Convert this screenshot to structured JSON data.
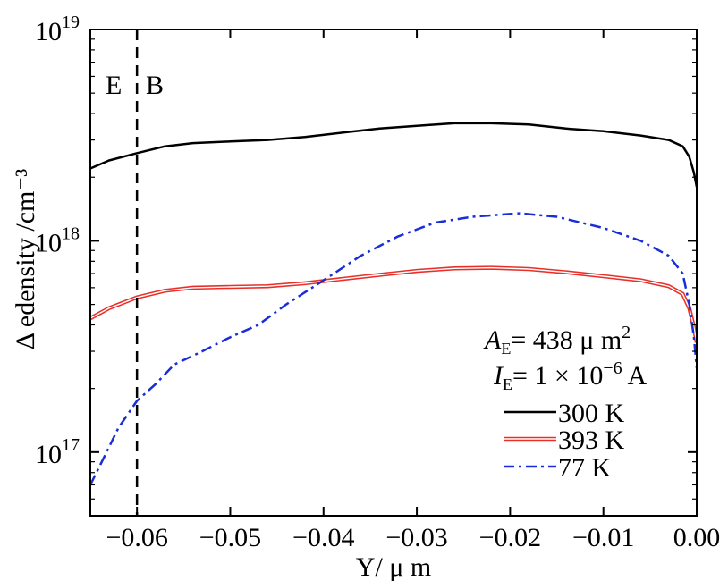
{
  "chart_data": {
    "type": "line",
    "title": "",
    "xlabel": "Y/ μ m",
    "ylabel": "Δ edensity /cm⁻³",
    "xlim": [
      -0.065,
      0.0
    ],
    "ylim": [
      5e+16,
      1e+19
    ],
    "yscale": "log",
    "grid": false,
    "legend_position": "bottom-right",
    "x_ticks": [
      {
        "value": -0.06,
        "label": "−0.06"
      },
      {
        "value": -0.05,
        "label": "−0.05"
      },
      {
        "value": -0.04,
        "label": "−0.04"
      },
      {
        "value": -0.03,
        "label": "−0.03"
      },
      {
        "value": -0.02,
        "label": "−0.02"
      },
      {
        "value": -0.01,
        "label": "−0.01"
      },
      {
        "value": 0.0,
        "label": "0.00"
      }
    ],
    "y_ticks": [
      {
        "value": 1e+17,
        "base": "10",
        "exp": "17"
      },
      {
        "value": 1e+18,
        "base": "10",
        "exp": "18"
      },
      {
        "value": 1e+19,
        "base": "10",
        "exp": "19"
      }
    ],
    "junction": {
      "x": -0.06,
      "left_label": "E",
      "right_label": "B"
    },
    "annotations": {
      "area_sym": "A",
      "area_sub": "E",
      "area_value": "= 438  μ  m",
      "area_sup": "2",
      "current_sym": "I",
      "current_sub": "E",
      "current_value": "= 1 × 10",
      "current_exp": "−6",
      "current_unit": " A"
    },
    "series": [
      {
        "name": "300  K",
        "color": "#000000",
        "style": "solid",
        "x": [
          -0.065,
          -0.063,
          -0.06,
          -0.057,
          -0.054,
          -0.05,
          -0.046,
          -0.042,
          -0.038,
          -0.034,
          -0.03,
          -0.026,
          -0.022,
          -0.018,
          -0.014,
          -0.01,
          -0.006,
          -0.003,
          -0.0015,
          -0.0008,
          -0.0003,
          0.0
        ],
        "y": [
          2.2e+18,
          2.4e+18,
          2.6e+18,
          2.8e+18,
          2.9e+18,
          2.95e+18,
          3e+18,
          3.1e+18,
          3.25e+18,
          3.4e+18,
          3.5e+18,
          3.6e+18,
          3.6e+18,
          3.55e+18,
          3.4e+18,
          3.3e+18,
          3.15e+18,
          3e+18,
          2.8e+18,
          2.5e+18,
          2.1e+18,
          1.8e+18
        ]
      },
      {
        "name": "393  K",
        "color": "#e8302a",
        "style": "double",
        "x": [
          -0.065,
          -0.063,
          -0.06,
          -0.057,
          -0.054,
          -0.05,
          -0.046,
          -0.042,
          -0.038,
          -0.034,
          -0.03,
          -0.026,
          -0.022,
          -0.018,
          -0.014,
          -0.01,
          -0.006,
          -0.003,
          -0.0015,
          -0.0008,
          -0.0003,
          0.0
        ],
        "y": [
          4.3e+17,
          4.8e+17,
          5.4e+17,
          5.8e+17,
          6e+17,
          6.05e+17,
          6.1e+17,
          6.3e+17,
          6.6e+17,
          6.9e+17,
          7.2e+17,
          7.4e+17,
          7.45e+17,
          7.35e+17,
          7.1e+17,
          6.8e+17,
          6.5e+17,
          6.1e+17,
          5.6e+17,
          4.8e+17,
          3.9e+17,
          3.3e+17
        ]
      },
      {
        "name": "77  K",
        "color": "#1a2ed8",
        "style": "dashdot",
        "x": [
          -0.065,
          -0.0635,
          -0.062,
          -0.06,
          -0.058,
          -0.056,
          -0.053,
          -0.05,
          -0.047,
          -0.044,
          -0.04,
          -0.036,
          -0.032,
          -0.028,
          -0.024,
          -0.019,
          -0.015,
          -0.01,
          -0.006,
          -0.003,
          -0.0015,
          -0.0008,
          -0.0003,
          0.0
        ],
        "y": [
          7e+16,
          9.5e+16,
          1.3e+17,
          1.75e+17,
          2.1e+17,
          2.6e+17,
          3e+17,
          3.5e+17,
          4e+17,
          5e+17,
          6.5e+17,
          8.5e+17,
          1.05e+18,
          1.22e+18,
          1.3e+18,
          1.35e+18,
          1.3e+18,
          1.15e+18,
          1e+18,
          8.5e+17,
          7e+17,
          5e+17,
          3.5e+17,
          2.5e+17
        ]
      }
    ]
  }
}
